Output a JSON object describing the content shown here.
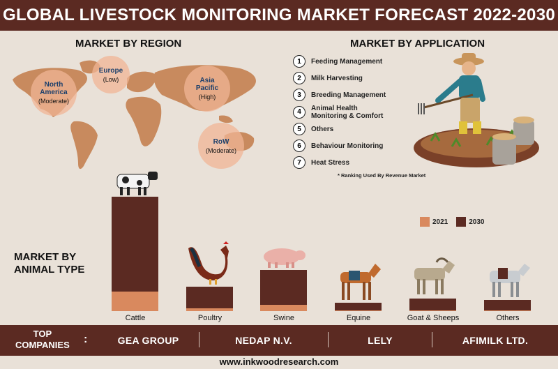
{
  "title": "GLOBAL LIVESTOCK MONITORING MARKET FORECAST 2022-2030",
  "region_section": {
    "title": "MARKET BY REGION",
    "regions": [
      {
        "name": "North America",
        "level": "(Moderate)"
      },
      {
        "name": "Europe",
        "level": "(Low)"
      },
      {
        "name": "Asia Pacific",
        "level": "(High)"
      },
      {
        "name": "RoW",
        "level": "(Moderate)"
      }
    ]
  },
  "application_section": {
    "title": "MARKET BY APPLICATION",
    "items": [
      {
        "num": "1",
        "label": "Feeding Management"
      },
      {
        "num": "2",
        "label": "Milk Harvesting"
      },
      {
        "num": "3",
        "label": "Breeding Management"
      },
      {
        "num": "4",
        "label": "Animal Health Monitoring & Comfort"
      },
      {
        "num": "5",
        "label": "Others"
      },
      {
        "num": "6",
        "label": "Behaviour Monitoring"
      },
      {
        "num": "7",
        "label": "Heat Stress"
      }
    ],
    "note": "* Ranking Used By Revenue Market"
  },
  "animal_section": {
    "title_line1": "MARKET BY",
    "title_line2": "ANIMAL TYPE"
  },
  "chart_data": {
    "type": "bar",
    "categories": [
      "Cattle",
      "Poultry",
      "Swine",
      "Equine",
      "Goat & Sheeps",
      "Others"
    ],
    "series": [
      {
        "name": "2021",
        "values": [
          28,
          4,
          9,
          1,
          1,
          1
        ]
      },
      {
        "name": "2030",
        "values": [
          136,
          31,
          50,
          11,
          17,
          15
        ]
      }
    ],
    "colors": {
      "2021": "#d9895e",
      "2030": "#5b2a22"
    }
  },
  "footer": {
    "top_label_line1": "TOP",
    "top_label_line2": "COMPANIES",
    "colon": ":",
    "companies": [
      "GEA GROUP",
      "NEDAP N.V.",
      "LELY",
      "AFIMILK LTD."
    ]
  },
  "website": "www.inkwoodresearch.com",
  "colors": {
    "brand": "#5b2a22",
    "accent": "#d9895e",
    "background": "#e9e1d8"
  }
}
